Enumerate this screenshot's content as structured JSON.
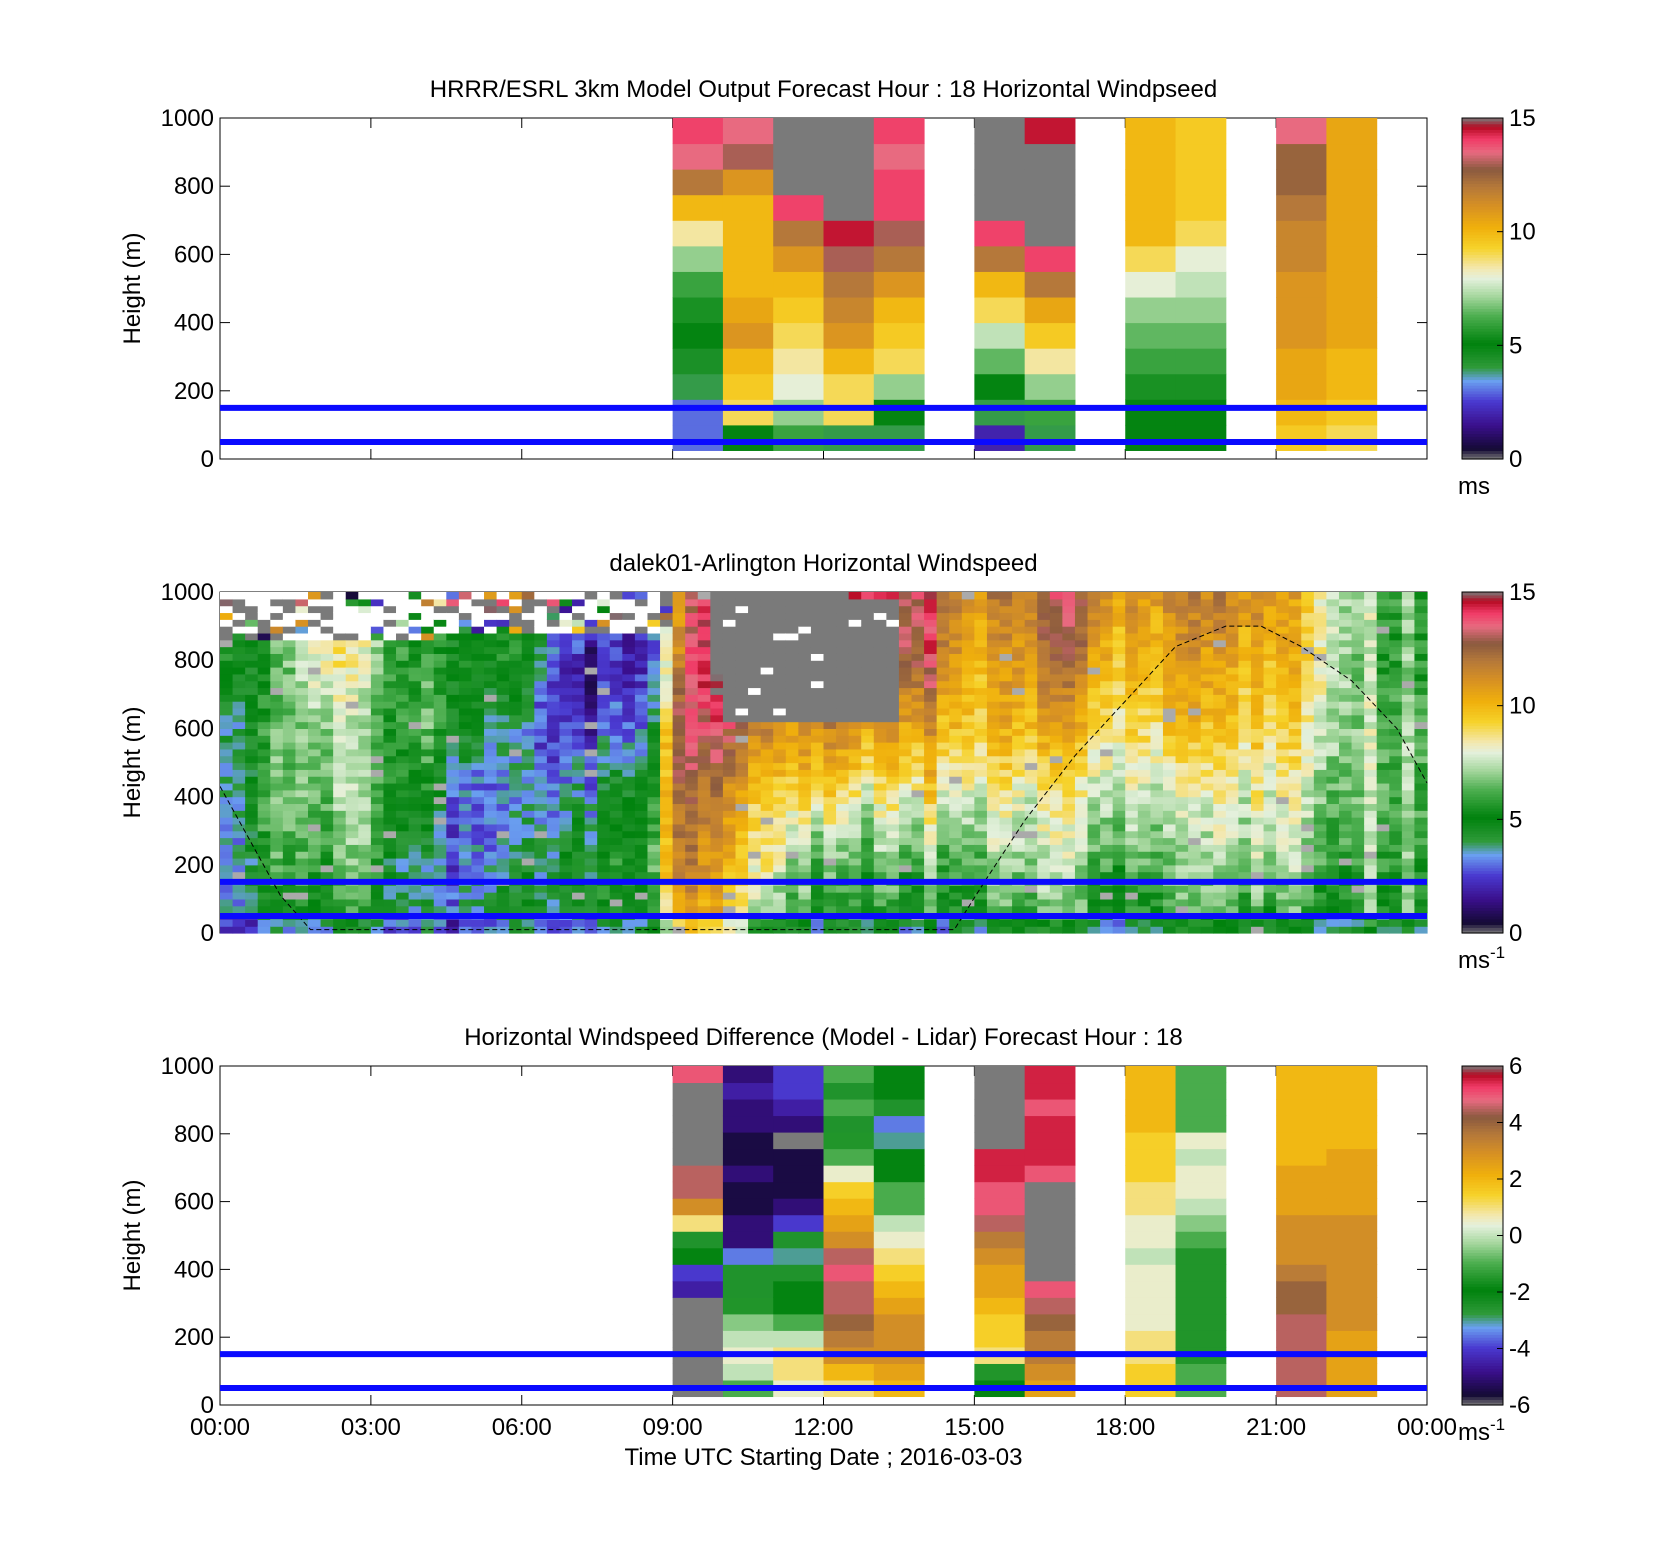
{
  "chart_data": [
    {
      "type": "heatmap",
      "title": "HRRR/ESRL 3km Model Output   Forecast Hour : 18 Horizontal Windpseed",
      "ylabel": "Height (m)",
      "ylim": [
        0,
        1000
      ],
      "yticks": [
        "0",
        "200",
        "400",
        "600",
        "800",
        "1000"
      ],
      "xlim": [
        0,
        24
      ],
      "colorbar": {
        "range": [
          0,
          15
        ],
        "ticks": [
          "0",
          "5",
          "10",
          "15"
        ],
        "unit": "ms"
      },
      "reference_lines_m": [
        50,
        150
      ],
      "columns": [
        {
          "t": 9.0,
          "speeds_low_to_high": [
            3,
            3,
            4,
            4.5,
            5,
            5.5,
            6,
            7,
            8.5,
            10,
            12,
            13.5,
            14
          ]
        },
        {
          "t": 10.0,
          "speeds_low_to_high": [
            5,
            9,
            9.5,
            10,
            11,
            10.5,
            10,
            10,
            10,
            10,
            11,
            13,
            13.5
          ]
        },
        {
          "t": 11.0,
          "speeds_low_to_high": [
            6,
            7,
            8,
            8.5,
            9,
            9.5,
            10,
            11,
            12,
            14,
            15,
            16,
            16
          ]
        },
        {
          "t": 12.0,
          "speeds_low_to_high": [
            4,
            9,
            9,
            10,
            11,
            11.5,
            12,
            13,
            14.5,
            16,
            16,
            15,
            15
          ]
        },
        {
          "t": 13.0,
          "speeds_low_to_high": [
            4,
            5,
            7,
            9,
            9.5,
            10,
            11,
            12,
            13,
            14,
            14,
            13.5,
            14
          ]
        },
        {
          "t": 15.0,
          "speeds_low_to_high": [
            2,
            4,
            5,
            6.5,
            7.5,
            9,
            10,
            12,
            14,
            15,
            16,
            16,
            16
          ]
        },
        {
          "t": 16.0,
          "speeds_low_to_high": [
            4,
            6,
            7,
            8.5,
            9.5,
            10.5,
            12,
            14,
            16,
            16,
            16,
            16,
            14.5
          ]
        },
        {
          "t": 18.0,
          "speeds_low_to_high": [
            5,
            5,
            5.5,
            6,
            6.5,
            7,
            8,
            9,
            10,
            10,
            10,
            10,
            10
          ]
        },
        {
          "t": 19.0,
          "speeds_low_to_high": [
            5,
            5,
            5.5,
            6,
            6.5,
            7,
            7.5,
            8,
            9,
            9.5,
            9.5,
            9.5,
            9.5
          ]
        },
        {
          "t": 21.0,
          "speeds_low_to_high": [
            9.5,
            10,
            10.5,
            10.5,
            11,
            11,
            11,
            11.5,
            11.5,
            12,
            12.5,
            12.5,
            13.5
          ]
        },
        {
          "t": 22.0,
          "speeds_low_to_high": [
            9,
            9.5,
            10,
            10,
            10.5,
            10.5,
            10.5,
            10.5,
            10.5,
            10.5,
            10.5,
            10.5,
            10.5
          ]
        }
      ]
    },
    {
      "type": "heatmap",
      "title": "dalek01-Arlington  Horizontal Windspeed",
      "ylabel": "Height (m)",
      "ylim": [
        0,
        1000
      ],
      "yticks": [
        "0",
        "200",
        "400",
        "600",
        "800",
        "1000"
      ],
      "xlim": [
        0,
        24
      ],
      "colorbar": {
        "range": [
          0,
          15
        ],
        "ticks": [
          "0",
          "5",
          "10",
          "15"
        ],
        "unit": "ms",
        "unit_exp": "-1"
      },
      "reference_lines_m": [
        50,
        150
      ],
      "profile_keyframes": [
        {
          "t": 0.0,
          "speeds_200m_steps": [
            3,
            2.5,
            3,
            3.5,
            5,
            5.5
          ]
        },
        {
          "t": 1.0,
          "speeds_200m_steps": [
            4.5,
            6,
            6.5,
            6,
            5.5,
            8
          ]
        },
        {
          "t": 2.0,
          "speeds_200m_steps": [
            5.5,
            6.5,
            7,
            7.5,
            9,
            8
          ]
        },
        {
          "t": 3.0,
          "speeds_200m_steps": [
            5,
            6,
            6.5,
            6,
            7,
            8
          ]
        },
        {
          "t": 4.0,
          "speeds_200m_steps": [
            4,
            3,
            5,
            6,
            5.5,
            5.5
          ]
        },
        {
          "t": 5.0,
          "speeds_200m_steps": [
            4,
            3,
            2.5,
            4.5,
            5,
            5.5
          ]
        },
        {
          "t": 6.0,
          "speeds_200m_steps": [
            5,
            3.5,
            3,
            3,
            5,
            5.5
          ]
        },
        {
          "t": 7.0,
          "speeds_200m_steps": [
            4,
            4.5,
            3.5,
            2,
            1.5,
            5
          ]
        },
        {
          "t": 8.0,
          "speeds_200m_steps": [
            5,
            5.5,
            4.5,
            3,
            2,
            2.5
          ]
        },
        {
          "t": 8.6,
          "speeds_200m_steps": [
            6,
            6.5,
            6,
            4,
            3,
            3
          ]
        },
        {
          "t": 9.0,
          "speeds_200m_steps": [
            10,
            12,
            12.5,
            13,
            11,
            10
          ]
        },
        {
          "t": 10.0,
          "speeds_200m_steps": [
            9.5,
            10,
            11,
            13,
            16,
            16
          ]
        },
        {
          "t": 11.0,
          "speeds_200m_steps": [
            6,
            8,
            9,
            11,
            16,
            16
          ]
        },
        {
          "t": 12.0,
          "speeds_200m_steps": [
            5,
            6,
            9,
            11,
            16,
            16
          ]
        },
        {
          "t": 13.0,
          "speeds_200m_steps": [
            5,
            6.5,
            8,
            11,
            13,
            14
          ]
        },
        {
          "t": 14.0,
          "speeds_200m_steps": [
            5.5,
            6.5,
            9,
            11,
            13.5,
            14
          ]
        },
        {
          "t": 15.0,
          "speeds_200m_steps": [
            5,
            6.5,
            8,
            9.5,
            10,
            11
          ]
        },
        {
          "t": 16.0,
          "speeds_200m_steps": [
            6,
            7,
            8,
            10,
            11,
            12
          ]
        },
        {
          "t": 17.0,
          "speeds_200m_steps": [
            6,
            7,
            8,
            10,
            12,
            13
          ]
        },
        {
          "t": 18.0,
          "speeds_200m_steps": [
            5,
            6.5,
            8,
            9,
            10,
            11
          ]
        },
        {
          "t": 19.0,
          "speeds_200m_steps": [
            5.5,
            6,
            7,
            9,
            10,
            11
          ]
        },
        {
          "t": 20.0,
          "speeds_200m_steps": [
            6,
            7,
            8,
            9.5,
            10.5,
            11.5
          ]
        },
        {
          "t": 21.0,
          "speeds_200m_steps": [
            5.5,
            7,
            8,
            9,
            10,
            11
          ]
        },
        {
          "t": 22.0,
          "speeds_200m_steps": [
            5,
            6.5,
            7,
            8,
            8.5,
            8
          ]
        },
        {
          "t": 23.0,
          "speeds_200m_steps": [
            6,
            6.5,
            7,
            7,
            6.5,
            7
          ]
        },
        {
          "t": 23.8,
          "speeds_200m_steps": [
            6,
            6.5,
            7,
            7,
            6.5,
            6.5
          ]
        }
      ],
      "missing_data_regions": [
        {
          "t_start": 0.0,
          "t_end": 4.2,
          "z_min": 850,
          "z_max": 1000
        },
        {
          "t_start": 4.2,
          "t_end": 9.0,
          "z_min": 880,
          "z_max": 1000
        },
        {
          "t_start": 9.8,
          "t_end": 13.3,
          "z_min": 620,
          "z_max": 980
        }
      ],
      "dashed_curve_pts": [
        [
          0,
          430
        ],
        [
          0.6,
          270
        ],
        [
          1.2,
          110
        ],
        [
          1.8,
          10
        ],
        [
          14.6,
          10
        ],
        [
          15.2,
          150
        ],
        [
          16.0,
          330
        ],
        [
          17.0,
          520
        ],
        [
          18.0,
          680
        ],
        [
          19.0,
          840
        ],
        [
          20.0,
          900
        ],
        [
          20.7,
          900
        ],
        [
          21.5,
          840
        ],
        [
          22.5,
          740
        ],
        [
          23.4,
          600
        ],
        [
          24.0,
          440
        ]
      ]
    },
    {
      "type": "heatmap",
      "title": "Horizontal Windspeed Difference (Model - Lidar) Forecast Hour : 18",
      "ylabel": "Height (m)",
      "xlabel": "Time UTC  Starting Date ; 2016-03-03",
      "ylim": [
        0,
        1000
      ],
      "yticks": [
        "0",
        "200",
        "400",
        "600",
        "800",
        "1000"
      ],
      "xlim": [
        0,
        24
      ],
      "xticks": [
        "00:00",
        "03:00",
        "06:00",
        "09:00",
        "12:00",
        "15:00",
        "18:00",
        "21:00",
        "00:00"
      ],
      "colorbar": {
        "range": [
          -6,
          6
        ],
        "ticks": [
          "-6",
          "-4",
          "-2",
          "0",
          "2",
          "4",
          "6"
        ],
        "unit": "ms",
        "unit_exp": "-1"
      },
      "reference_lines_m": [
        50,
        150
      ],
      "columns": [
        {
          "t": 9.0,
          "diff_low_to_high": [
            7,
            7,
            7,
            7,
            7,
            7,
            -4.5,
            -4,
            -2,
            -2.5,
            1,
            3,
            4.5,
            4.5,
            7,
            7,
            7,
            7,
            7,
            5
          ]
        },
        {
          "t": 10.0,
          "diff_low_to_high": [
            -1,
            0,
            0.5,
            0,
            -0.5,
            -1.5,
            -2.5,
            -2.5,
            -3.5,
            -5,
            -5,
            -5.5,
            -5.5,
            -5,
            -5.5,
            -5.5,
            -5,
            -5,
            -4.5,
            -5
          ]
        },
        {
          "t": 11.0,
          "diff_low_to_high": [
            0.5,
            1,
            1,
            0,
            -1,
            -2,
            -2,
            -2.5,
            -3,
            -2.5,
            -4,
            -5,
            -5.5,
            -5.5,
            -5.5,
            -6,
            -5,
            -4.5,
            -4,
            -4
          ]
        },
        {
          "t": 12.0,
          "diff_low_to_high": [
            1,
            2,
            3,
            3.5,
            4,
            4.5,
            4.5,
            5,
            4.5,
            3,
            2.5,
            2,
            1.5,
            0.5,
            -1,
            -1.5,
            -2.5,
            -1,
            -2.5,
            -1
          ]
        },
        {
          "t": 13.0,
          "diff_low_to_high": [
            2,
            2.5,
            3,
            3,
            3,
            2.5,
            2,
            1.5,
            1,
            0.5,
            0,
            -1,
            -1,
            -2,
            -2,
            -3,
            -3.5,
            -2.5,
            -2,
            -2
          ]
        },
        {
          "t": 15.0,
          "diff_low_to_high": [
            -2,
            -1.5,
            1,
            1.5,
            1.5,
            2,
            2.5,
            2.5,
            3,
            3.5,
            4.5,
            5,
            5,
            5.5,
            5.5,
            7,
            7,
            7,
            7,
            7
          ]
        },
        {
          "t": 16.0,
          "diff_low_to_high": [
            2.5,
            3,
            3.5,
            3.5,
            4,
            4.5,
            5,
            7,
            7,
            7,
            7,
            7,
            7,
            5,
            5.5,
            5.5,
            5.5,
            5,
            5.5,
            5.5
          ]
        },
        {
          "t": 18.0,
          "diff_low_to_high": [
            1.5,
            1.5,
            1,
            1,
            0.5,
            0.5,
            0.5,
            0.5,
            0,
            0.5,
            0.5,
            1,
            1,
            1.5,
            1.5,
            1.5,
            2,
            2,
            2,
            2
          ]
        },
        {
          "t": 19.0,
          "diff_low_to_high": [
            -1,
            -1,
            -1.5,
            -1.5,
            -1.5,
            -1.5,
            -1.5,
            -1.5,
            -1.5,
            -1,
            -0.5,
            0,
            0.5,
            0.5,
            0,
            0.5,
            -1,
            -1,
            -1,
            -1
          ]
        },
        {
          "t": 21.0,
          "diff_low_to_high": [
            4.5,
            4.5,
            4.5,
            4.5,
            4.5,
            4,
            4,
            3.5,
            3,
            3,
            3,
            2.5,
            2.5,
            2.5,
            2,
            2,
            2,
            2,
            2,
            2
          ]
        },
        {
          "t": 22.0,
          "diff_low_to_high": [
            2.5,
            2.5,
            2.5,
            2.5,
            3,
            3,
            3,
            3,
            3,
            3,
            3,
            2.5,
            2.5,
            2.5,
            2.5,
            2,
            2,
            2,
            2,
            2
          ]
        }
      ]
    }
  ]
}
